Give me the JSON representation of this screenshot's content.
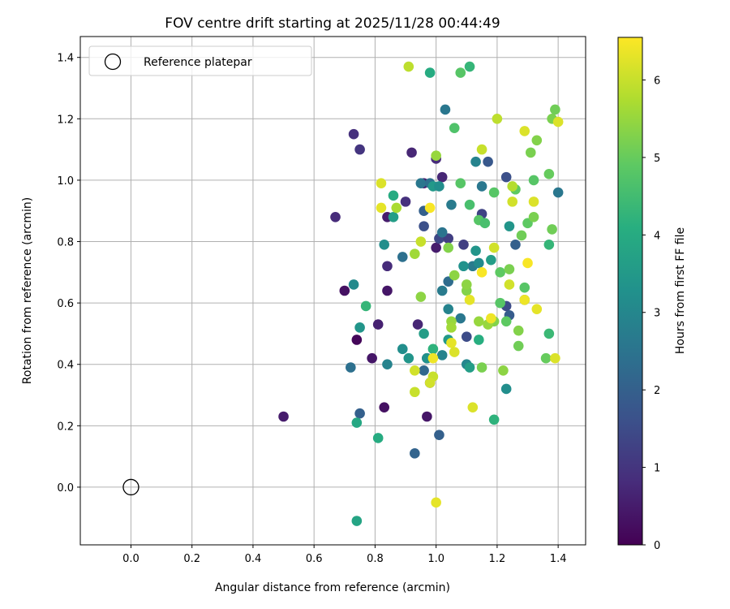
{
  "chart_data": {
    "type": "scatter",
    "title": "FOV centre drift starting at 2025/11/28 00:44:49",
    "xlabel": "Angular distance from reference (arcmin)",
    "ylabel": "Rotation from reference (arcmin)",
    "xlim": [
      -0.166,
      1.49
    ],
    "ylim": [
      -0.188,
      1.468
    ],
    "xticks": [
      0.0,
      0.2,
      0.4,
      0.6,
      0.8,
      1.0,
      1.2,
      1.4
    ],
    "xtick_labels": [
      "0.0",
      "0.2",
      "0.4",
      "0.6",
      "0.8",
      "1.0",
      "1.2",
      "1.4"
    ],
    "yticks": [
      0.0,
      0.2,
      0.4,
      0.6,
      0.8,
      1.0,
      1.2,
      1.4
    ],
    "ytick_labels": [
      "0.0",
      "0.2",
      "0.4",
      "0.6",
      "0.8",
      "1.0",
      "1.2",
      "1.4"
    ],
    "grid": true,
    "legend": {
      "placement": "top-left",
      "entries": [
        "Reference platepar"
      ]
    },
    "reference_point": {
      "x": 0.0,
      "y": 0.0,
      "label": "Reference platepar"
    },
    "colorbar": {
      "label": "Hours from first FF file",
      "range": [
        0,
        6.55
      ],
      "ticks": [
        0,
        1,
        2,
        3,
        4,
        5,
        6
      ],
      "tick_labels": [
        "0",
        "1",
        "2",
        "3",
        "4",
        "5",
        "6"
      ],
      "colormap": "viridis"
    },
    "points": [
      [
        0.5,
        0.23,
        0.5
      ],
      [
        0.67,
        0.88,
        0.8
      ],
      [
        0.7,
        0.64,
        0.3
      ],
      [
        0.73,
        1.15,
        0.9
      ],
      [
        0.75,
        1.1,
        1.0
      ],
      [
        0.74,
        0.48,
        0.1
      ],
      [
        0.79,
        0.42,
        0.4
      ],
      [
        0.81,
        0.53,
        0.6
      ],
      [
        0.83,
        0.26,
        0.3
      ],
      [
        0.84,
        0.64,
        0.4
      ],
      [
        0.84,
        0.72,
        0.8
      ],
      [
        0.84,
        0.88,
        0.5
      ],
      [
        0.92,
        1.09,
        0.7
      ],
      [
        0.9,
        0.93,
        0.9
      ],
      [
        0.94,
        0.53,
        0.7
      ],
      [
        0.97,
        0.23,
        0.4
      ],
      [
        0.96,
        0.99,
        0.6
      ],
      [
        0.97,
        0.42,
        0.5
      ],
      [
        1.0,
        1.07,
        0.8
      ],
      [
        1.02,
        1.01,
        0.7
      ],
      [
        1.0,
        0.78,
        0.5
      ],
      [
        1.1,
        0.49,
        1.5
      ],
      [
        0.98,
        0.34,
        0.8
      ],
      [
        0.96,
        0.85,
        1.6
      ],
      [
        1.01,
        0.81,
        1.4
      ],
      [
        1.04,
        0.81,
        1.2
      ],
      [
        1.09,
        0.79,
        1.2
      ],
      [
        1.15,
        0.89,
        1.3
      ],
      [
        1.17,
        1.06,
        1.8
      ],
      [
        1.23,
        1.01,
        1.6
      ],
      [
        1.23,
        0.59,
        1.5
      ],
      [
        1.26,
        0.79,
        2.0
      ],
      [
        1.24,
        0.56,
        1.9
      ],
      [
        1.01,
        0.17,
        2.0
      ],
      [
        0.93,
        0.11,
        2.1
      ],
      [
        0.75,
        0.24,
        2.0
      ],
      [
        0.72,
        0.39,
        2.4
      ],
      [
        0.84,
        0.4,
        2.9
      ],
      [
        0.89,
        0.75,
        2.4
      ],
      [
        0.95,
        0.99,
        2.6
      ],
      [
        0.96,
        0.9,
        2.0
      ],
      [
        0.96,
        0.38,
        2.2
      ],
      [
        0.98,
        0.99,
        2.4
      ],
      [
        1.02,
        0.83,
        2.5
      ],
      [
        1.02,
        0.64,
        2.7
      ],
      [
        1.02,
        0.43,
        2.9
      ],
      [
        1.03,
        1.23,
        2.6
      ],
      [
        1.04,
        0.67,
        2.3
      ],
      [
        1.04,
        0.58,
        2.9
      ],
      [
        1.05,
        0.92,
        2.7
      ],
      [
        1.08,
        0.55,
        2.6
      ],
      [
        1.1,
        0.4,
        3.0
      ],
      [
        1.12,
        0.72,
        2.7
      ],
      [
        1.13,
        1.06,
        2.9
      ],
      [
        1.15,
        0.98,
        2.6
      ],
      [
        1.23,
        0.32,
        3.2
      ],
      [
        1.29,
        0.61,
        2.8
      ],
      [
        1.4,
        0.96,
        2.6
      ],
      [
        0.73,
        0.66,
        3.1
      ],
      [
        0.75,
        0.52,
        3.4
      ],
      [
        0.83,
        0.79,
        3.2
      ],
      [
        0.86,
        0.88,
        3.6
      ],
      [
        0.89,
        0.45,
        3.2
      ],
      [
        0.91,
        0.42,
        3.4
      ],
      [
        0.96,
        0.5,
        3.6
      ],
      [
        0.97,
        0.42,
        3.3
      ],
      [
        0.99,
        0.98,
        3.5
      ],
      [
        1.01,
        0.98,
        3.2
      ],
      [
        1.04,
        0.48,
        3.5
      ],
      [
        1.09,
        0.72,
        3.3
      ],
      [
        1.11,
        0.39,
        3.6
      ],
      [
        1.14,
        0.73,
        3.1
      ],
      [
        1.13,
        0.77,
        3.4
      ],
      [
        1.18,
        0.74,
        3.6
      ],
      [
        1.24,
        0.85,
        3.4
      ],
      [
        0.74,
        0.21,
        3.9
      ],
      [
        0.74,
        -0.11,
        3.8
      ],
      [
        0.81,
        0.16,
        4.0
      ],
      [
        0.77,
        0.59,
        4.3
      ],
      [
        0.86,
        0.95,
        4.0
      ],
      [
        0.98,
        1.35,
        4.0
      ],
      [
        0.99,
        0.45,
        4.2
      ],
      [
        1.11,
        1.37,
        4.3
      ],
      [
        1.14,
        0.48,
        4.1
      ],
      [
        1.19,
        0.22,
        4.2
      ],
      [
        1.37,
        0.79,
        4.3
      ],
      [
        1.37,
        0.5,
        4.4
      ],
      [
        1.06,
        1.17,
        4.7
      ],
      [
        1.08,
        1.35,
        4.8
      ],
      [
        1.08,
        0.99,
        4.8
      ],
      [
        1.11,
        0.92,
        4.6
      ],
      [
        1.14,
        0.87,
        4.8
      ],
      [
        1.16,
        0.86,
        4.6
      ],
      [
        1.19,
        0.96,
        4.8
      ],
      [
        1.21,
        0.7,
        4.9
      ],
      [
        1.21,
        0.6,
        4.8
      ],
      [
        1.23,
        0.54,
        4.9
      ],
      [
        1.26,
        0.97,
        4.9
      ],
      [
        1.29,
        0.65,
        4.8
      ],
      [
        1.3,
        0.86,
        4.9
      ],
      [
        1.32,
        1.0,
        4.8
      ],
      [
        1.36,
        0.42,
        5.0
      ],
      [
        1.37,
        1.02,
        5.0
      ],
      [
        1.38,
        1.2,
        5.2
      ],
      [
        1.39,
        1.23,
        5.1
      ],
      [
        1.38,
        0.84,
        5.1
      ],
      [
        1.31,
        1.09,
        5.2
      ],
      [
        1.33,
        1.13,
        5.3
      ],
      [
        1.32,
        0.88,
        5.2
      ],
      [
        1.28,
        0.82,
        5.1
      ],
      [
        1.27,
        0.46,
        5.1
      ],
      [
        1.27,
        0.51,
        5.3
      ],
      [
        1.24,
        0.71,
        5.2
      ],
      [
        1.22,
        0.38,
        5.4
      ],
      [
        1.19,
        0.54,
        5.3
      ],
      [
        1.17,
        0.53,
        5.5
      ],
      [
        1.15,
        0.39,
        5.2
      ],
      [
        1.14,
        0.54,
        5.5
      ],
      [
        1.1,
        0.64,
        5.3
      ],
      [
        1.1,
        0.66,
        5.4
      ],
      [
        1.06,
        0.69,
        5.4
      ],
      [
        1.05,
        0.54,
        5.5
      ],
      [
        1.05,
        0.52,
        5.6
      ],
      [
        1.04,
        0.78,
        5.3
      ],
      [
        1.0,
        1.08,
        5.5
      ],
      [
        0.95,
        0.62,
        5.4
      ],
      [
        0.93,
        0.76,
        5.6
      ],
      [
        0.87,
        0.91,
        5.7
      ],
      [
        0.91,
        1.37,
        5.9
      ],
      [
        0.99,
        0.36,
        6.0
      ],
      [
        0.98,
        0.34,
        6.1
      ],
      [
        0.95,
        0.8,
        6.0
      ],
      [
        0.93,
        0.38,
        6.1
      ],
      [
        0.93,
        0.31,
        6.0
      ],
      [
        0.82,
        0.99,
        6.2
      ],
      [
        0.82,
        0.91,
        6.3
      ],
      [
        0.98,
        0.91,
        6.5
      ],
      [
        0.99,
        0.42,
        6.4
      ],
      [
        1.05,
        0.47,
        6.3
      ],
      [
        1.06,
        0.44,
        6.2
      ],
      [
        1.11,
        0.61,
        6.3
      ],
      [
        1.12,
        0.26,
        6.2
      ],
      [
        1.15,
        0.7,
        6.5
      ],
      [
        1.15,
        1.1,
        6.0
      ],
      [
        1.19,
        0.78,
        6.1
      ],
      [
        1.2,
        1.2,
        5.9
      ],
      [
        1.24,
        0.66,
        6.1
      ],
      [
        1.25,
        0.93,
        6.1
      ],
      [
        1.29,
        1.16,
        6.2
      ],
      [
        1.3,
        0.73,
        6.5
      ],
      [
        1.32,
        0.93,
        6.2
      ],
      [
        1.33,
        0.58,
        6.3
      ],
      [
        1.39,
        0.42,
        6.2
      ],
      [
        1.4,
        1.19,
        6.2
      ],
      [
        1.0,
        -0.05,
        6.3
      ],
      [
        1.18,
        0.55,
        6.4
      ],
      [
        1.25,
        0.98,
        5.8
      ],
      [
        1.29,
        0.61,
        6.4
      ]
    ]
  }
}
